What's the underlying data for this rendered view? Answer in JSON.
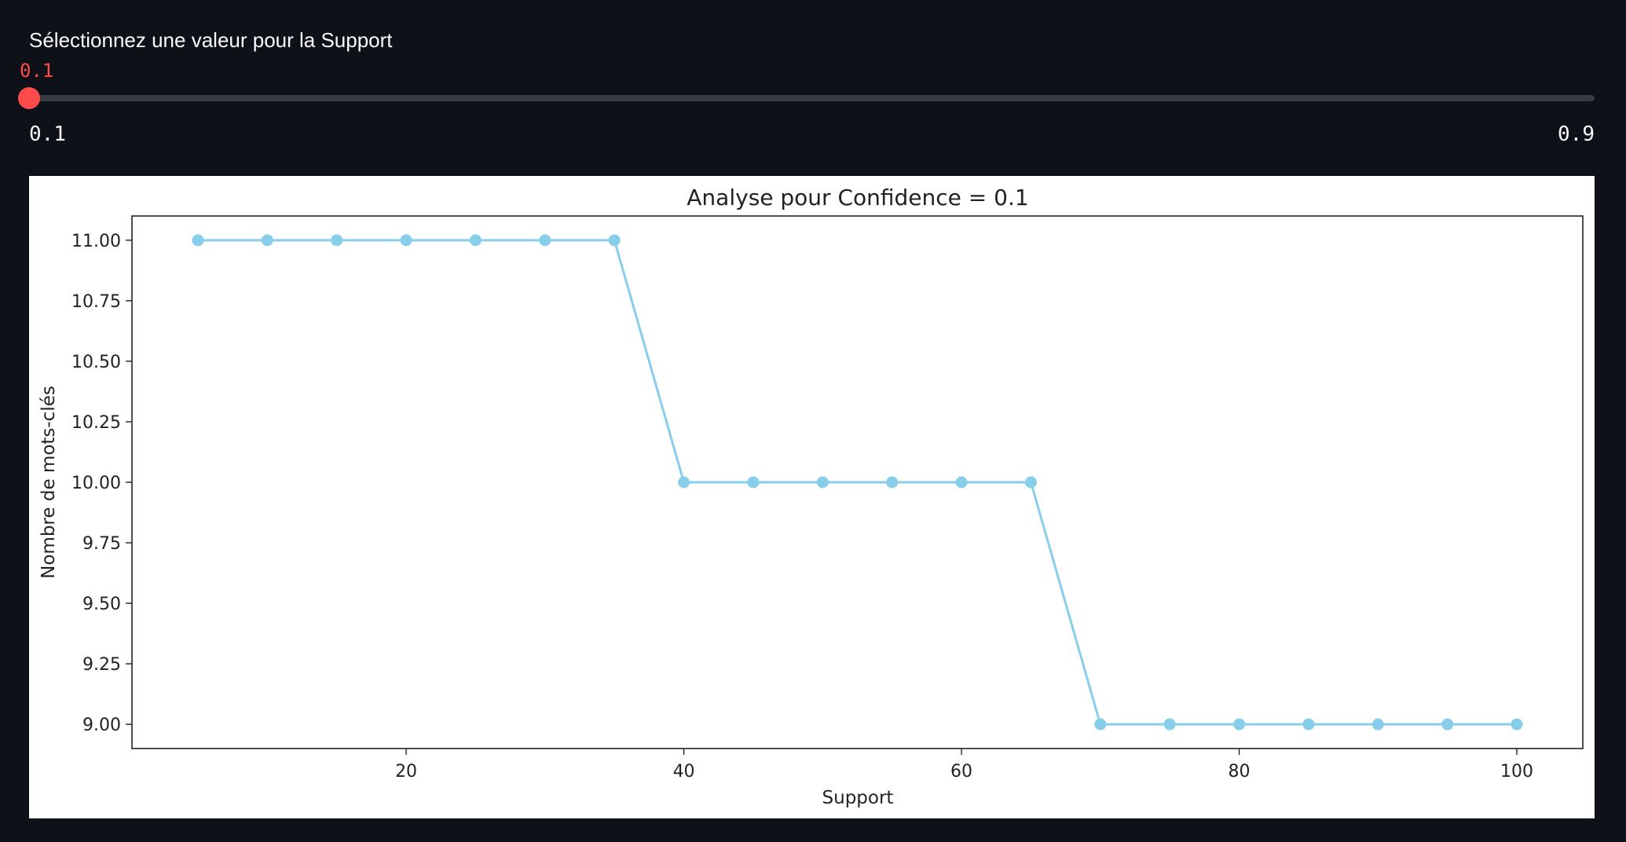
{
  "slider": {
    "label": "Sélectionnez une valeur pour la Support",
    "value": "0.1",
    "min_label": "0.1",
    "max_label": "0.9",
    "value_numeric": 0.1,
    "min": 0.1,
    "max": 0.9,
    "accent_color": "#ff4b4b"
  },
  "colors": {
    "background": "#0e1117",
    "series": "#87ceeb"
  },
  "chart_data": {
    "type": "line",
    "title": "Analyse pour Confidence = 0.1",
    "xlabel": "Support",
    "ylabel": "Nombre de mots-clés",
    "x": [
      5,
      10,
      15,
      20,
      25,
      30,
      35,
      40,
      45,
      50,
      55,
      60,
      65,
      70,
      75,
      80,
      85,
      90,
      95,
      100
    ],
    "series": [
      {
        "values": [
          11,
          11,
          11,
          11,
          11,
          11,
          11,
          10,
          10,
          10,
          10,
          10,
          10,
          9,
          9,
          9,
          9,
          9,
          9,
          9
        ],
        "color": "#87ceeb",
        "marker": "circle"
      }
    ],
    "xlim": [
      0.25,
      104.75
    ],
    "ylim": [
      8.9,
      11.1
    ],
    "xticks": [
      20,
      40,
      60,
      80,
      100
    ],
    "yticks": [
      11.0,
      10.75,
      10.5,
      10.25,
      10.0,
      9.75,
      9.5,
      9.25,
      9.0
    ],
    "ytick_labels": [
      "11.00",
      "10.75",
      "10.50",
      "10.25",
      "10.00",
      "9.75",
      "9.50",
      "9.25",
      "9.00"
    ],
    "grid": false,
    "legend": "none"
  }
}
